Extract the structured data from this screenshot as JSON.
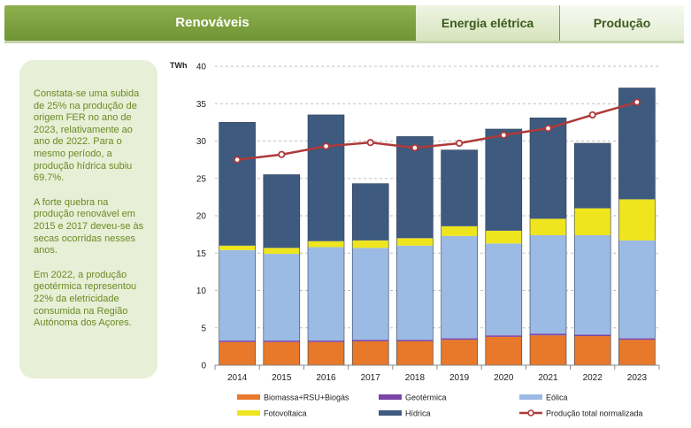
{
  "header": {
    "title": "Renováveis",
    "tab_energy": "Energia elétrica",
    "tab_production": "Produção"
  },
  "sidebar": {
    "paragraphs": [
      "Constata-se uma subida de 25% na produção de origem FER no ano de 2023, relativamente ao ano de 2022. Para o mesmo período, a produção hídrica subiu 69.7%.",
      "A forte quebra na produção renovável em 2015 e 2017 deveu-se às secas  ocorridas nesses anos.",
      "Em 2022, a produção geotérmica representou 22% da eletricidade consumida na Região Autónoma dos Açores."
    ]
  },
  "colors": {
    "biomassa": "#e8782a",
    "geotermica": "#7b44a8",
    "eolica": "#9bbae4",
    "fotovoltaica": "#eee51e",
    "hidrica": "#3e5a7f",
    "normalizada": "#b03a3a",
    "grid": "#bfbfbf"
  },
  "chart_data": {
    "type": "bar",
    "stacked": true,
    "ylabel": "TWh",
    "ylim": [
      0,
      40
    ],
    "yticks": [
      0,
      5,
      10,
      15,
      20,
      25,
      30,
      35,
      40
    ],
    "categories": [
      "2014",
      "2015",
      "2016",
      "2017",
      "2018",
      "2019",
      "2020",
      "2021",
      "2022",
      "2023"
    ],
    "series": [
      {
        "name": "Biomassa+RSU+Biogás",
        "color_key": "biomassa",
        "values": [
          3.1,
          3.1,
          3.1,
          3.2,
          3.2,
          3.4,
          3.8,
          4.0,
          3.9,
          3.4
        ]
      },
      {
        "name": "Geotérmica",
        "color_key": "geotermica",
        "values": [
          0.2,
          0.2,
          0.2,
          0.2,
          0.2,
          0.2,
          0.2,
          0.2,
          0.2,
          0.2
        ]
      },
      {
        "name": "Eólica",
        "color_key": "eolica",
        "values": [
          12.1,
          11.6,
          12.5,
          12.3,
          12.6,
          13.7,
          12.3,
          13.2,
          13.3,
          13.1
        ]
      },
      {
        "name": "Fotovoltaica",
        "color_key": "fotovoltaica",
        "values": [
          0.6,
          0.8,
          0.8,
          1.0,
          1.0,
          1.3,
          1.7,
          2.2,
          3.6,
          5.5
        ]
      },
      {
        "name": "Hídrica",
        "color_key": "hidrica",
        "values": [
          16.5,
          9.8,
          16.9,
          7.6,
          13.6,
          10.2,
          13.6,
          13.5,
          8.7,
          14.9
        ]
      }
    ],
    "line": {
      "name": "Produção total normalizada",
      "color_key": "normalizada",
      "values": [
        27.5,
        28.2,
        29.3,
        29.8,
        29.1,
        29.7,
        30.8,
        31.7,
        33.5,
        35.2
      ]
    },
    "legend_position": "bottom"
  }
}
